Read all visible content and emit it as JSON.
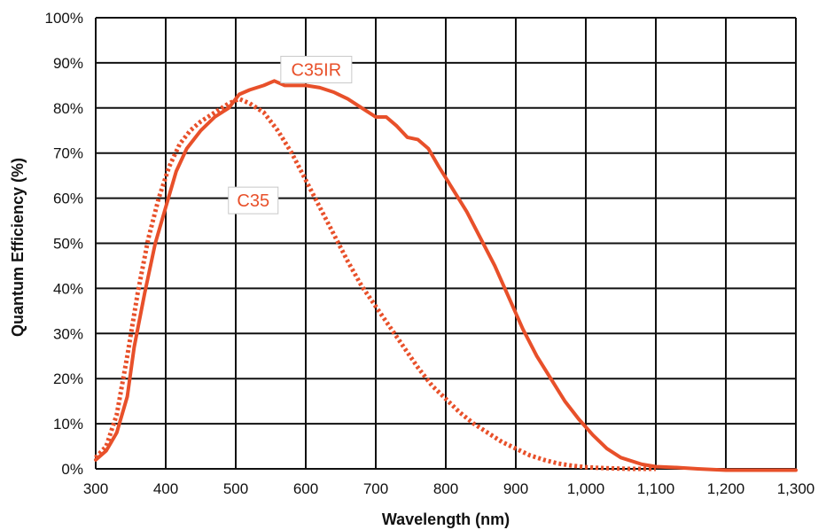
{
  "chart_data": {
    "type": "line",
    "title": "",
    "xlabel": "Wavelength (nm)",
    "ylabel": "Quantum Efficiency  (%)",
    "xlim": [
      300,
      1300
    ],
    "ylim": [
      0,
      100
    ],
    "x_ticks": [
      300,
      400,
      500,
      600,
      700,
      800,
      900,
      1000,
      1100,
      1200,
      1300
    ],
    "x_tick_labels": [
      "300",
      "400",
      "500",
      "600",
      "700",
      "800",
      "900",
      "1,000",
      "1,100",
      "1,200",
      "1,300"
    ],
    "y_ticks": [
      0,
      10,
      20,
      30,
      40,
      50,
      60,
      70,
      80,
      90,
      100
    ],
    "y_tick_labels": [
      "0%",
      "10%",
      "20%",
      "30%",
      "40%",
      "50%",
      "60%",
      "70%",
      "80%",
      "90%",
      "100%"
    ],
    "grid": true,
    "legend": "inline labels",
    "series": [
      {
        "name": "C35IR",
        "style": "solid",
        "color": "#e8502a",
        "x": [
          300,
          315,
          330,
          345,
          355,
          370,
          385,
          400,
          415,
          430,
          450,
          470,
          490,
          505,
          520,
          540,
          555,
          570,
          585,
          600,
          620,
          640,
          660,
          680,
          700,
          715,
          730,
          745,
          760,
          775,
          790,
          810,
          830,
          850,
          870,
          890,
          910,
          930,
          950,
          970,
          990,
          1010,
          1030,
          1050,
          1080,
          1100,
          1130,
          1160,
          1200,
          1250,
          1300
        ],
        "y": [
          2,
          4,
          8,
          16,
          27,
          39,
          50,
          58,
          66,
          71,
          75,
          78,
          80,
          83,
          84,
          85,
          86,
          85,
          85,
          85,
          84.5,
          83.5,
          82,
          80,
          78,
          78,
          76,
          73.5,
          73,
          71,
          67,
          62,
          57,
          51,
          45,
          38,
          31,
          25,
          20,
          15,
          11,
          7.5,
          4.5,
          2.5,
          1,
          0.5,
          0.3,
          0,
          -0.3,
          -0.3,
          -0.3
        ]
      },
      {
        "name": "C35",
        "style": "dotted",
        "color": "#e8502a",
        "x": [
          300,
          315,
          330,
          345,
          360,
          375,
          390,
          405,
          420,
          435,
          450,
          470,
          490,
          505,
          520,
          540,
          560,
          580,
          600,
          620,
          640,
          660,
          680,
          700,
          720,
          740,
          760,
          780,
          800,
          820,
          840,
          860,
          880,
          900,
          920,
          940,
          960,
          980,
          1000,
          1020,
          1040,
          1060,
          1080,
          1100
        ],
        "y": [
          2.5,
          5,
          12,
          25,
          39,
          51,
          60,
          67,
          72,
          75,
          77,
          79,
          81,
          82,
          81,
          79,
          75,
          70,
          64,
          58,
          52,
          46,
          40.5,
          36,
          31.5,
          27,
          22.5,
          18.5,
          15.5,
          12.5,
          10,
          8,
          6,
          4.5,
          3,
          2,
          1.2,
          0.7,
          0.4,
          0.2,
          0.1,
          0,
          0,
          0
        ]
      }
    ],
    "annotations": [
      {
        "text": "C35IR",
        "x": 615,
        "y": 88.5
      },
      {
        "text": "C35",
        "x": 525,
        "y": 59.5
      }
    ]
  }
}
